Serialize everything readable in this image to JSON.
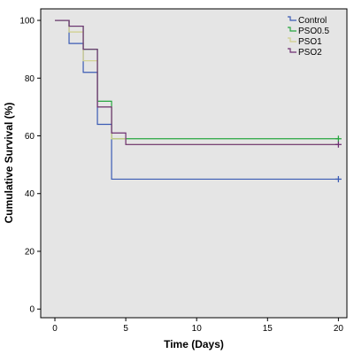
{
  "chart_data": {
    "type": "line",
    "subtype": "kaplan-meier-step",
    "xlabel": "Time (Days)",
    "ylabel": "Cumulative Survival (%)",
    "xlim": [
      -1,
      20.6
    ],
    "ylim": [
      -3,
      104
    ],
    "xticks": [
      0,
      5,
      10,
      15,
      20
    ],
    "yticks": [
      0,
      20,
      40,
      60,
      80,
      100
    ],
    "grid": false,
    "legend": "top-right",
    "plot_background": "#e5e5e5",
    "series": [
      {
        "name": "Control",
        "color": "#3b5bb4",
        "x": [
          0,
          1,
          2,
          3,
          4,
          20
        ],
        "y": [
          100,
          92,
          82,
          64,
          45,
          45
        ],
        "censor_x": [
          20
        ],
        "censor_y": [
          45
        ]
      },
      {
        "name": "PSO0.5",
        "color": "#27a640",
        "x": [
          0,
          1,
          2,
          3,
          4,
          20
        ],
        "y": [
          100,
          98,
          90,
          72,
          59,
          59
        ],
        "censor_x": [
          20
        ],
        "censor_y": [
          59
        ]
      },
      {
        "name": "PSO1",
        "color": "#d0cf8a",
        "x": [
          0,
          1,
          2,
          3,
          4,
          5,
          20
        ],
        "y": [
          100,
          96,
          86,
          70,
          59,
          57,
          57
        ],
        "censor_x": [],
        "censor_y": []
      },
      {
        "name": "PSO2",
        "color": "#6e2f72",
        "x": [
          0,
          1,
          2,
          3,
          4,
          5,
          20
        ],
        "y": [
          100,
          98,
          90,
          70,
          61,
          57,
          57
        ],
        "censor_x": [
          20
        ],
        "censor_y": [
          57
        ]
      }
    ]
  }
}
